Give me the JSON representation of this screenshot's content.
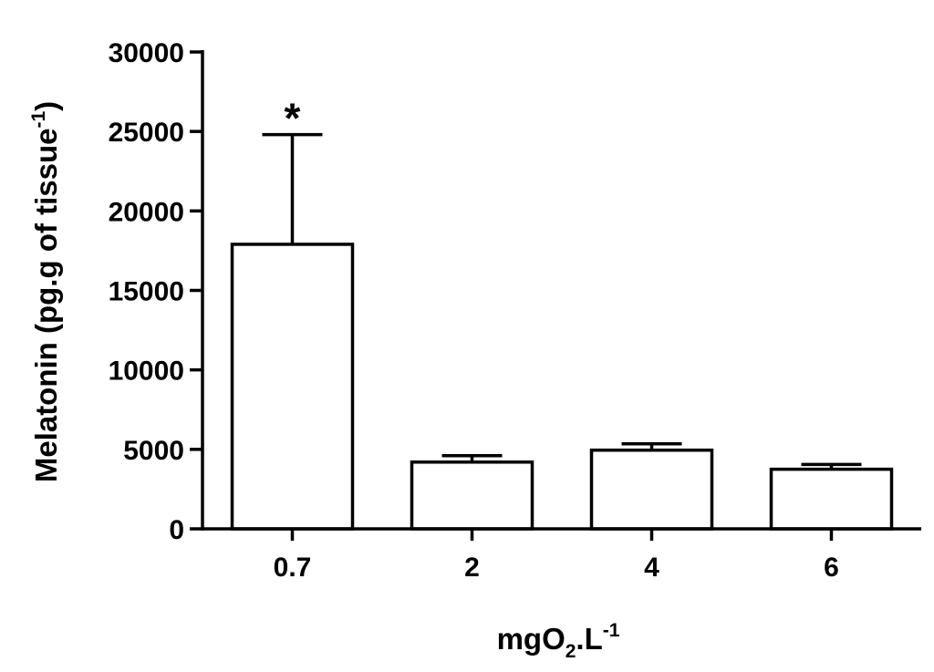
{
  "chart_data": {
    "type": "bar",
    "categories": [
      "0.7",
      "2",
      "4",
      "6"
    ],
    "values": [
      17900,
      4200,
      4950,
      3750
    ],
    "errors": [
      6900,
      400,
      400,
      300
    ],
    "color": "#ffffff",
    "edge_color": "#000000",
    "ylim": [
      0,
      30000
    ],
    "yticks": [
      0,
      5000,
      10000,
      15000,
      20000,
      25000,
      30000
    ],
    "ylabel": [
      "Melatonin (pg.g of tissue",
      "-1",
      ")"
    ],
    "xlabel": [
      "mgO",
      "2",
      ".L",
      "-1"
    ],
    "annotations": [
      "*"
    ],
    "grid": false
  }
}
